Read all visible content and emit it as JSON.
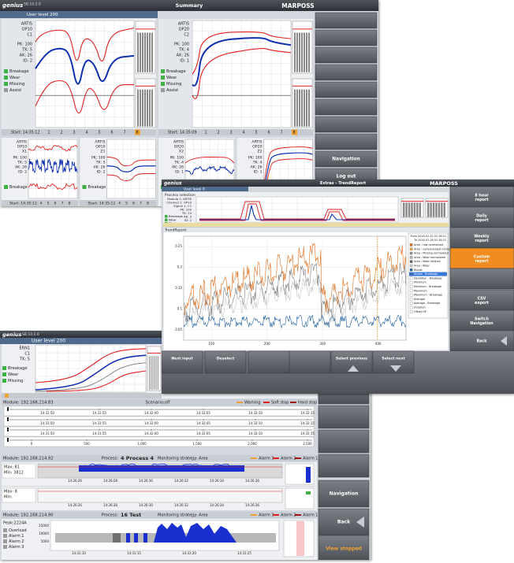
{
  "summary": {
    "brand": "genius",
    "version": "SB.10.2.0",
    "title": "Summary",
    "logo": "MARPOSS",
    "user_level": "User level 200",
    "panels": [
      {
        "lines": [
          "ARTIS",
          "OP10",
          "C1"
        ],
        "params": [
          "PK: 100",
          "TK: 5",
          "AK: 26",
          "ID: 2"
        ],
        "legend": [
          "Breakage",
          "Wear",
          "Missing",
          "Assist"
        ],
        "start": "Start: 14:35:12"
      },
      {
        "lines": [
          "ARTIS",
          "OP20",
          "C2"
        ],
        "params": [
          "PK: 100",
          "TK: 4",
          "AK: 26",
          "ID: 1"
        ],
        "legend": [
          "Breakage",
          "Wear",
          "Missing",
          "Assist"
        ],
        "start": "Start: 14:35:09"
      }
    ],
    "strip_numbers": [
      "1",
      "2",
      "3",
      "4",
      "5",
      "6",
      "7",
      "8"
    ],
    "small_panels": [
      {
        "lines": [
          "ARTIS",
          "OP10",
          "X1"
        ],
        "params": [
          "PK: 100",
          "TK: 5",
          "AK: 26",
          "ID: 2"
        ],
        "legend": [
          "Breakage"
        ],
        "start": "Start: 14:35:12"
      },
      {
        "lines": [
          "ARTIS",
          "OP10",
          "Z1"
        ],
        "params": [
          "PK: 100",
          "TK: 5",
          "AK: 26",
          "ID: 2"
        ],
        "legend": [
          "Breakage"
        ],
        "start": "Start: 14:35:12"
      },
      {
        "lines": [
          "ARTIS",
          "OP20",
          "X2"
        ],
        "params": [
          "PK: 100",
          "TK: 4",
          "AK: 26",
          "ID: 1"
        ],
        "legend": [
          "Breakage"
        ]
      },
      {
        "lines": [
          "ARTIS",
          "OP20",
          "Z2"
        ],
        "params": [
          "PK: 100",
          "TK: 4",
          "AK: 26",
          "ID: 1"
        ],
        "legend": [
          "Breakage"
        ]
      }
    ],
    "buttons": [
      "Navigation",
      "Log out"
    ]
  },
  "trend": {
    "brand": "genius",
    "title": "Extras - TrendReport",
    "logo": "MARPOSS",
    "user_level": "User level 0",
    "selection_title": "Process selection",
    "lines": [
      "Module 1: ARTIS",
      "Channel 1: OP10",
      "Signal 1: C1",
      "PK: 100",
      "TK: 24",
      "AK: 3",
      "ID: 2"
    ],
    "legend": [
      "Breakage",
      "Wear",
      "Missing"
    ],
    "report_title": "TrendReport",
    "from": "From 2018-02-25 01:16:21",
    "to": "To 2018-02-26 01:16:21",
    "series_list": [
      {
        "name": "Area - raw normalized",
        "color": "#e07020"
      },
      {
        "name": "Area - compensated normalized",
        "color": "#f0a040"
      },
      {
        "name": "Area - Missing normalized",
        "color": "#909090"
      },
      {
        "name": "Area - Wear normalized",
        "color": "#b0b0b0"
      },
      {
        "name": "Area - Wear relative",
        "color": "#606060"
      },
      {
        "name": "Area - Wear",
        "color": "#c8c8c8"
      },
      {
        "name": "Ripple",
        "color": "#2060a0"
      },
      {
        "name": "Stroke - Breakage",
        "color": "#3070d0"
      },
      {
        "name": "Deviation - Breakage",
        "color": "#ffffff"
      },
      {
        "name": "Minimum",
        "color": "#ffffff"
      },
      {
        "name": "Minimum - Breakage",
        "color": "#ffffff"
      },
      {
        "name": "Maximum",
        "color": "#ffffff"
      },
      {
        "name": "Maximum - Breakage",
        "color": "#ffffff"
      },
      {
        "name": "Average",
        "color": "#ffffff"
      },
      {
        "name": "Average - Breakage",
        "color": "#ffffff"
      },
      {
        "name": "Duration",
        "color": "#ffffff"
      },
      {
        "name": "Offset HP",
        "color": "#ffffff"
      }
    ],
    "selected": 7,
    "yticks": [
      "0.25",
      "0.2",
      "0.15",
      "0.1",
      "0.05"
    ],
    "xticks": [
      "100",
      "200",
      "300",
      "400"
    ],
    "buttons": [
      "8 hour report",
      "Daily report",
      "Weekly report",
      "Custom report",
      "CSV export",
      "Switch Navigation",
      "Back"
    ],
    "active_button": 3,
    "bottom_buttons": [
      "Next input",
      "Deselect",
      "Select previous",
      "Select next"
    ]
  },
  "monitor": {
    "brand": "genius",
    "version": "SB.10.2.0",
    "user_level": "User level 200",
    "panel": {
      "lines": [
        "ERN1",
        "C1",
        "TK: 5"
      ],
      "legend": [
        "Breakage",
        "Wear",
        "Missing"
      ]
    },
    "module1": {
      "label": "Module: 192.168.214.83",
      "center": "Scenario:off",
      "legend": [
        "Warning",
        "Soft stop",
        "Hard stop"
      ],
      "times": [
        "14:31:50",
        "14:31:55",
        "14:32:00",
        "14:32:05",
        "14:32:10",
        "14:32:15"
      ],
      "scale": [
        "0",
        "500",
        "1,000",
        "1,500",
        "2,000",
        "2,500"
      ]
    },
    "module2": {
      "label": "Module: 192.168.214.92",
      "process_label": "Process:",
      "process": "4 Process 4",
      "strategy": "Monitoring strategy: Area",
      "legend": [
        "Alarm 3",
        "Alarm 2",
        "Alarm 1"
      ],
      "rows": [
        [
          "Max: 81",
          "Min: 3812"
        ],
        [
          "Max: 8",
          "Min:"
        ]
      ],
      "times": [
        "14:26:26",
        "14:26:28",
        "14:26:30",
        "14:26:32",
        "14:26:34",
        "14:26:36"
      ]
    },
    "module3": {
      "label": "Module: 192.168.214.90",
      "process_label": "Process:",
      "process": "16 Test",
      "strategy": "Monitoring strategy: Area",
      "legend": [
        "Alarm 3",
        "Alarm 2",
        "Alarm 1"
      ],
      "peak": "Peak:2224A",
      "alarms": [
        "Overload",
        "Alarm 1",
        "Alarm 2",
        "Alarm 3"
      ],
      "ylabels": [
        "15000",
        "10000",
        "5000"
      ],
      "times": [
        "14:31:10",
        "14:31:15",
        "14:31:20",
        "14:31:25"
      ]
    },
    "buttons": [
      "Navigation",
      "Back",
      "View stopped"
    ]
  }
}
